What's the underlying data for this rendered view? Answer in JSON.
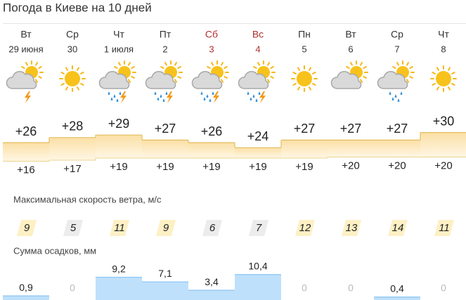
{
  "title": "Погода в Киеве на 10 дней",
  "wind_title": "Максимальная скорость ветра, м/с",
  "precip_title": "Сумма осадков, мм",
  "days": [
    {
      "weekday": "Вт",
      "date": "29 июня",
      "weekend": false,
      "icon": "storm",
      "max": {
        "value": 26,
        "label": "+26"
      },
      "min": {
        "value": 16,
        "label": "+16"
      },
      "wind": 9,
      "precip": {
        "value": 0.9,
        "label": "0,9"
      }
    },
    {
      "weekday": "Ср",
      "date": "30",
      "weekend": false,
      "icon": "sun",
      "max": {
        "value": 28,
        "label": "+28"
      },
      "min": {
        "value": 17,
        "label": "+17"
      },
      "wind": 5,
      "precip": 0
    },
    {
      "weekday": "Чт",
      "date": "1 июля",
      "weekend": false,
      "icon": "rainstorm",
      "max": {
        "value": 29,
        "label": "+29"
      },
      "min": {
        "value": 19,
        "label": "+19"
      },
      "wind": 11,
      "precip": {
        "value": 9.2,
        "label": "9,2"
      }
    },
    {
      "weekday": "Пт",
      "date": "2",
      "weekend": false,
      "icon": "rainstorm",
      "max": {
        "value": 27,
        "label": "+27"
      },
      "min": {
        "value": 19,
        "label": "+19"
      },
      "wind": 9,
      "precip": {
        "value": 7.1,
        "label": "7,1"
      }
    },
    {
      "weekday": "Сб",
      "date": "3",
      "weekend": true,
      "icon": "rainstorm",
      "max": {
        "value": 26,
        "label": "+26"
      },
      "min": {
        "value": 19,
        "label": "+19"
      },
      "wind": 6,
      "precip": {
        "value": 3.4,
        "label": "3,4"
      }
    },
    {
      "weekday": "Вс",
      "date": "4",
      "weekend": true,
      "icon": "rainstorm",
      "max": {
        "value": 24,
        "label": "+24"
      },
      "min": {
        "value": 19,
        "label": "+19"
      },
      "wind": 7,
      "precip": {
        "value": 10.4,
        "label": "10,4"
      }
    },
    {
      "weekday": "Пн",
      "date": "5",
      "weekend": false,
      "icon": "sun",
      "max": {
        "value": 27,
        "label": "+27"
      },
      "min": {
        "value": 19,
        "label": "+19"
      },
      "wind": 12,
      "precip": 0
    },
    {
      "weekday": "Вт",
      "date": "6",
      "weekend": false,
      "icon": "cloudy",
      "max": {
        "value": 27,
        "label": "+27"
      },
      "min": {
        "value": 20,
        "label": "+20"
      },
      "wind": 13,
      "precip": 0
    },
    {
      "weekday": "Ср",
      "date": "7",
      "weekend": false,
      "icon": "rain",
      "max": {
        "value": 27,
        "label": "+27"
      },
      "min": {
        "value": 20,
        "label": "+20"
      },
      "wind": 14,
      "precip": {
        "value": 0.4,
        "label": "0,4"
      }
    },
    {
      "weekday": "Чт",
      "date": "8",
      "weekend": false,
      "icon": "sun",
      "max": {
        "value": 30,
        "label": "+30"
      },
      "min": {
        "value": 20,
        "label": "+20"
      },
      "wind": 11,
      "precip": 0
    }
  ]
}
